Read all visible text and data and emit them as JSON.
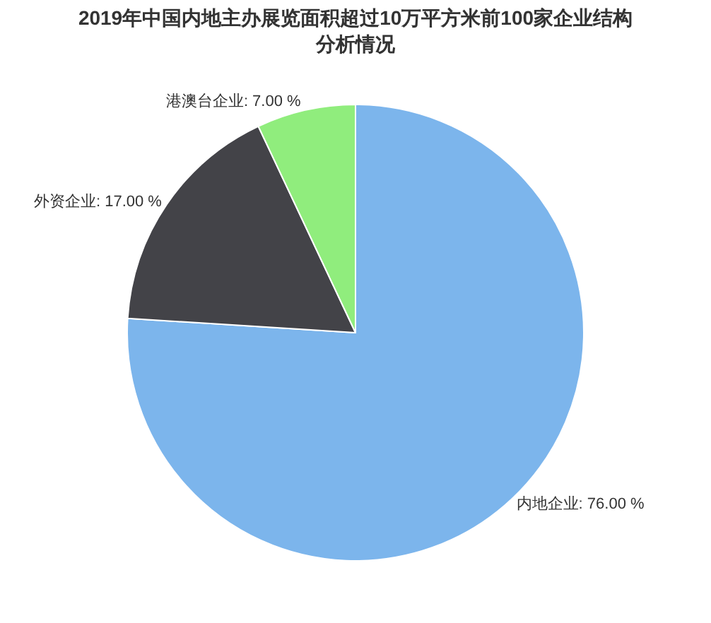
{
  "chart_data": {
    "type": "pie",
    "title": "2019年中国内地主办展览面积超过10万平方米前100家企业结构分析情况",
    "categories": [
      "内地企业",
      "外资企业",
      "港澳台企业"
    ],
    "values": [
      76,
      17,
      7
    ],
    "value_labels": [
      "76.00 %",
      "17.00 %",
      "7.00 %"
    ],
    "colors": [
      "#7cb5ec",
      "#434348",
      "#90ed7d"
    ],
    "legend": false
  }
}
